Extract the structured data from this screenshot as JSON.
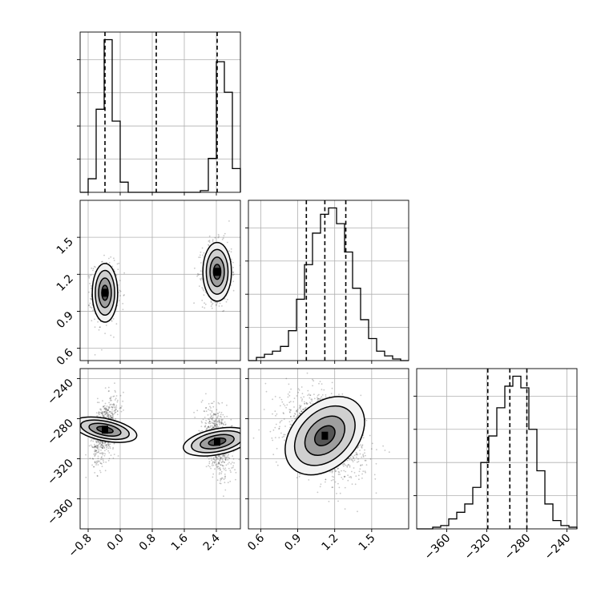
{
  "chart_data": {
    "type": "corner",
    "parameters": [
      {
        "id": "p0",
        "range": [
          -1.0,
          3.0
        ],
        "ticks": [
          -0.8,
          0.0,
          0.8,
          1.6,
          2.4
        ],
        "tick_labels": [
          "−0.8",
          "0.0",
          "0.8",
          "1.6",
          "2.4"
        ],
        "quantiles": [
          -0.38,
          0.9,
          2.42
        ]
      },
      {
        "id": "p1",
        "range": [
          0.5,
          1.8
        ],
        "ticks": [
          0.6,
          0.9,
          1.2,
          1.5
        ],
        "tick_labels": [
          "0.6",
          "0.9",
          "1.2",
          "1.5"
        ],
        "quantiles": [
          0.97,
          1.12,
          1.29
        ]
      },
      {
        "id": "p2",
        "range": [
          -390.0,
          -230.0
        ],
        "ticks": [
          -360,
          -320,
          -280,
          -240
        ],
        "tick_labels": [
          "−360",
          "−320",
          "−280",
          "−240"
        ],
        "quantiles": [
          -319.0,
          -297.0,
          -280.0
        ]
      }
    ],
    "histograms": [
      {
        "param": "p0",
        "bin_edges": [
          -1.0,
          -0.8,
          -0.6,
          -0.4,
          -0.2,
          0.0,
          0.2,
          0.4,
          0.6,
          0.8,
          1.0,
          1.2,
          1.4,
          1.6,
          1.8,
          2.0,
          2.2,
          2.4,
          2.6,
          2.8,
          3.0
        ],
        "counts": [
          0.0,
          0.08,
          0.49,
          0.9,
          0.42,
          0.06,
          0.0,
          0.0,
          0.0,
          0.0,
          0.0,
          0.0,
          0.0,
          0.0,
          0.0,
          0.01,
          0.2,
          0.77,
          0.59,
          0.14,
          0.0
        ]
      },
      {
        "param": "p1",
        "bin_edges": [
          0.5,
          0.565,
          0.63,
          0.695,
          0.76,
          0.825,
          0.89,
          0.955,
          1.02,
          1.085,
          1.15,
          1.215,
          1.28,
          1.345,
          1.41,
          1.475,
          1.54,
          1.605,
          1.67,
          1.735,
          1.8
        ],
        "counts": [
          0.0,
          0.02,
          0.04,
          0.06,
          0.09,
          0.19,
          0.39,
          0.61,
          0.81,
          0.93,
          0.97,
          0.87,
          0.69,
          0.46,
          0.26,
          0.14,
          0.06,
          0.03,
          0.01,
          0.0
        ]
      },
      {
        "param": "p2",
        "bin_edges": [
          -390,
          -382,
          -374,
          -366,
          -358,
          -350,
          -342,
          -334,
          -326,
          -318,
          -310,
          -302,
          -294,
          -286,
          -278,
          -270,
          -262,
          -254,
          -246,
          -238,
          -230
        ],
        "counts": [
          0.0,
          0.0,
          0.01,
          0.02,
          0.06,
          0.1,
          0.15,
          0.25,
          0.4,
          0.56,
          0.73,
          0.86,
          0.92,
          0.85,
          0.6,
          0.35,
          0.15,
          0.05,
          0.02,
          0.01
        ]
      }
    ],
    "scatter_density": [
      {
        "x": "p0",
        "y": "p1",
        "clusters": [
          {
            "x": -0.38,
            "y": 1.05,
            "sx": 0.16,
            "sy": 0.12,
            "rho": 0.0,
            "weight": 0.5
          },
          {
            "x": 2.42,
            "y": 1.22,
            "sx": 0.18,
            "sy": 0.12,
            "rho": 0.0,
            "weight": 0.5
          }
        ]
      },
      {
        "x": "p0",
        "y": "p2",
        "clusters": [
          {
            "x": -0.38,
            "y": -291,
            "sx": 0.16,
            "sy": 16,
            "rho": 0.45,
            "weight": 0.5
          },
          {
            "x": 2.42,
            "y": -303,
            "sx": 0.18,
            "sy": 17,
            "rho": -0.4,
            "weight": 0.5
          }
        ]
      },
      {
        "x": "p1",
        "y": "p2",
        "clusters": [
          {
            "x": 1.12,
            "y": -297,
            "sx": 0.16,
            "sy": 20,
            "rho": -0.35,
            "weight": 1.0
          }
        ]
      }
    ],
    "contour_levels": [
      0.12,
      0.39,
      0.68,
      0.86
    ],
    "grid": true
  }
}
